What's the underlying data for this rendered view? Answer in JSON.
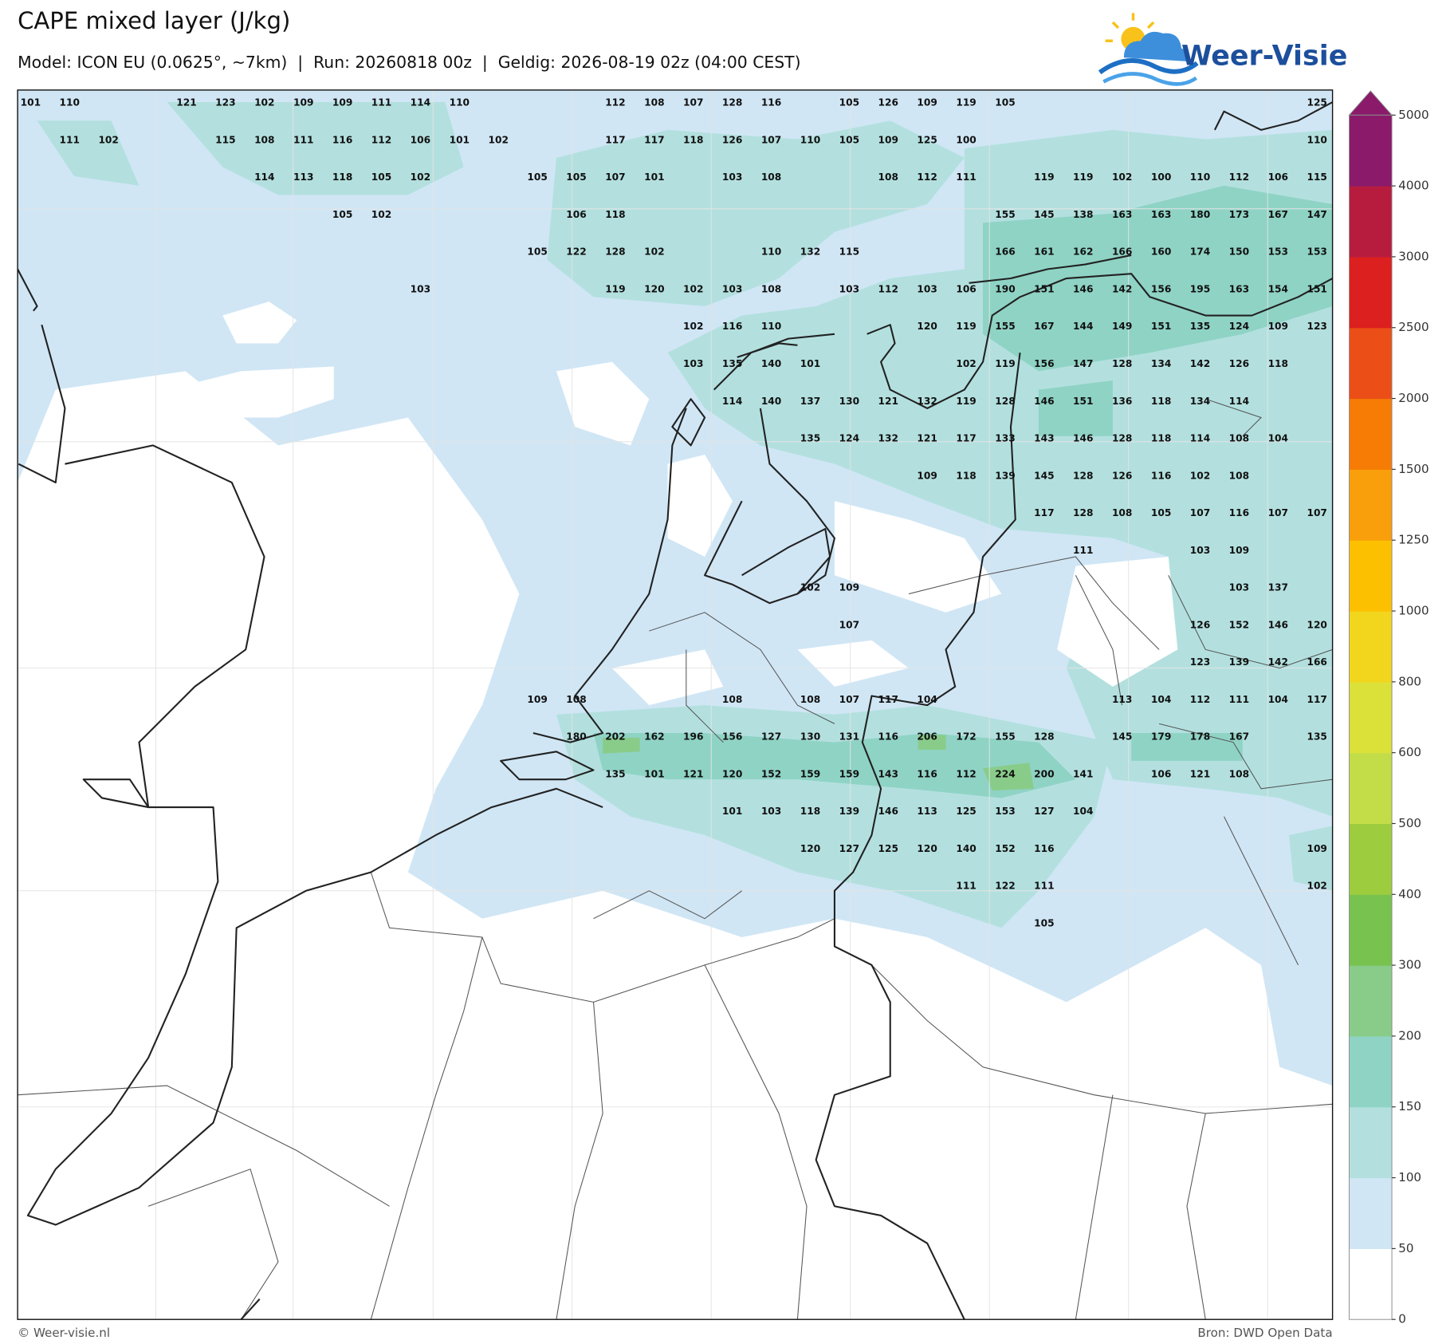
{
  "header": {
    "title": "CAPE mixed layer (J/kg)",
    "subtitle": "Model: ICON EU (0.0625°, ~7km)  |  Run: 20260818 00z  |  Geldig: 2026-08-19 02z (04:00 CEST)",
    "logo": "Weer-Visie"
  },
  "map": {
    "value_grid": [
      [
        101,
        110,
        null,
        null,
        121,
        123,
        102,
        109,
        109,
        111,
        114,
        110,
        null,
        null,
        null,
        112,
        108,
        107,
        128,
        116,
        null,
        105,
        126,
        109,
        119,
        105,
        null,
        null,
        null,
        null,
        null,
        null,
        null,
        125
      ],
      [
        null,
        111,
        102,
        null,
        null,
        115,
        108,
        111,
        116,
        112,
        106,
        101,
        102,
        null,
        null,
        117,
        117,
        118,
        126,
        107,
        110,
        105,
        109,
        125,
        100,
        null,
        null,
        null,
        null,
        null,
        null,
        null,
        null,
        110
      ],
      [
        null,
        null,
        null,
        null,
        null,
        null,
        114,
        113,
        118,
        105,
        102,
        null,
        null,
        105,
        105,
        107,
        101,
        null,
        103,
        108,
        null,
        null,
        108,
        112,
        111,
        null,
        119,
        119,
        102,
        100,
        110,
        112,
        106,
        115
      ],
      [
        null,
        null,
        null,
        null,
        null,
        null,
        null,
        null,
        105,
        102,
        null,
        null,
        null,
        null,
        106,
        118,
        null,
        null,
        null,
        null,
        null,
        null,
        null,
        null,
        null,
        155,
        145,
        138,
        163,
        163,
        180,
        173,
        167,
        147
      ],
      [
        null,
        null,
        null,
        null,
        null,
        null,
        null,
        null,
        null,
        null,
        null,
        null,
        null,
        105,
        122,
        128,
        102,
        null,
        null,
        110,
        132,
        115,
        null,
        null,
        null,
        166,
        161,
        162,
        166,
        160,
        174,
        150,
        153,
        153
      ],
      [
        null,
        null,
        null,
        null,
        null,
        null,
        null,
        null,
        null,
        null,
        103,
        null,
        null,
        null,
        null,
        119,
        120,
        102,
        103,
        108,
        null,
        103,
        112,
        103,
        106,
        190,
        151,
        146,
        142,
        156,
        195,
        163,
        154,
        151
      ],
      [
        null,
        null,
        null,
        null,
        null,
        null,
        null,
        null,
        null,
        null,
        null,
        null,
        null,
        null,
        null,
        null,
        null,
        102,
        116,
        110,
        null,
        null,
        null,
        120,
        119,
        155,
        167,
        144,
        149,
        151,
        135,
        124,
        109,
        123
      ],
      [
        null,
        null,
        null,
        null,
        null,
        null,
        null,
        null,
        null,
        null,
        null,
        null,
        null,
        null,
        null,
        null,
        null,
        103,
        135,
        140,
        101,
        null,
        null,
        null,
        102,
        119,
        156,
        147,
        128,
        134,
        142,
        126,
        118,
        null
      ],
      [
        null,
        null,
        null,
        null,
        null,
        null,
        null,
        null,
        null,
        null,
        null,
        null,
        null,
        null,
        null,
        null,
        null,
        null,
        114,
        140,
        137,
        130,
        121,
        132,
        119,
        128,
        146,
        151,
        136,
        118,
        134,
        114,
        null,
        null
      ],
      [
        null,
        null,
        null,
        null,
        null,
        null,
        null,
        null,
        null,
        null,
        null,
        null,
        null,
        null,
        null,
        null,
        null,
        null,
        null,
        null,
        135,
        124,
        132,
        121,
        117,
        133,
        143,
        146,
        128,
        118,
        114,
        108,
        104,
        null
      ],
      [
        null,
        null,
        null,
        null,
        null,
        null,
        null,
        null,
        null,
        null,
        null,
        null,
        null,
        null,
        null,
        null,
        null,
        null,
        null,
        null,
        null,
        null,
        null,
        109,
        118,
        139,
        145,
        128,
        126,
        116,
        102,
        108,
        null,
        null
      ],
      [
        null,
        null,
        null,
        null,
        null,
        null,
        null,
        null,
        null,
        null,
        null,
        null,
        null,
        null,
        null,
        null,
        null,
        null,
        null,
        null,
        null,
        null,
        null,
        null,
        null,
        null,
        117,
        128,
        108,
        105,
        107,
        116,
        107,
        107
      ],
      [
        null,
        null,
        null,
        null,
        null,
        null,
        null,
        null,
        null,
        null,
        null,
        null,
        null,
        null,
        null,
        null,
        null,
        null,
        null,
        null,
        null,
        null,
        null,
        null,
        null,
        null,
        null,
        111,
        null,
        null,
        103,
        109,
        null,
        null
      ],
      [
        null,
        null,
        null,
        null,
        null,
        null,
        null,
        null,
        null,
        null,
        null,
        null,
        null,
        null,
        null,
        null,
        null,
        null,
        null,
        null,
        102,
        109,
        null,
        null,
        null,
        null,
        null,
        null,
        null,
        null,
        null,
        103,
        137,
        null
      ],
      [
        null,
        null,
        null,
        null,
        null,
        null,
        null,
        null,
        null,
        null,
        null,
        null,
        null,
        null,
        null,
        null,
        null,
        null,
        null,
        null,
        null,
        107,
        null,
        null,
        null,
        null,
        null,
        null,
        null,
        null,
        126,
        152,
        146,
        120
      ],
      [
        null,
        null,
        null,
        null,
        null,
        null,
        null,
        null,
        null,
        null,
        null,
        null,
        null,
        null,
        null,
        null,
        null,
        null,
        null,
        null,
        null,
        null,
        null,
        null,
        null,
        null,
        null,
        null,
        null,
        null,
        123,
        139,
        142,
        166
      ],
      [
        null,
        null,
        null,
        null,
        null,
        null,
        null,
        null,
        null,
        null,
        null,
        null,
        null,
        109,
        108,
        null,
        null,
        null,
        108,
        null,
        108,
        107,
        117,
        104,
        null,
        null,
        null,
        null,
        113,
        104,
        112,
        111,
        104,
        117
      ],
      [
        null,
        null,
        null,
        null,
        null,
        null,
        null,
        null,
        null,
        null,
        null,
        null,
        null,
        null,
        180,
        202,
        162,
        196,
        156,
        127,
        130,
        131,
        116,
        206,
        172,
        155,
        128,
        null,
        145,
        179,
        178,
        167,
        null,
        135
      ],
      [
        null,
        null,
        null,
        null,
        null,
        null,
        null,
        null,
        null,
        null,
        null,
        null,
        null,
        null,
        null,
        135,
        101,
        121,
        120,
        152,
        159,
        159,
        143,
        116,
        112,
        224,
        200,
        141,
        null,
        106,
        121,
        108,
        null,
        null
      ],
      [
        null,
        null,
        null,
        null,
        null,
        null,
        null,
        null,
        null,
        null,
        null,
        null,
        null,
        null,
        null,
        null,
        null,
        null,
        101,
        103,
        118,
        139,
        146,
        113,
        125,
        153,
        127,
        104,
        null,
        null,
        null,
        null,
        null,
        null
      ],
      [
        null,
        null,
        null,
        null,
        null,
        null,
        null,
        null,
        null,
        null,
        null,
        null,
        null,
        null,
        null,
        null,
        null,
        null,
        null,
        null,
        120,
        127,
        125,
        120,
        140,
        152,
        116,
        null,
        null,
        null,
        null,
        null,
        null,
        109
      ],
      [
        null,
        null,
        null,
        null,
        null,
        null,
        null,
        null,
        null,
        null,
        null,
        null,
        null,
        null,
        null,
        null,
        null,
        null,
        null,
        null,
        null,
        null,
        null,
        null,
        111,
        122,
        111,
        null,
        null,
        null,
        null,
        null,
        null,
        102
      ],
      [
        null,
        null,
        null,
        null,
        null,
        null,
        null,
        null,
        null,
        null,
        null,
        null,
        null,
        null,
        null,
        null,
        null,
        null,
        null,
        null,
        null,
        null,
        null,
        null,
        null,
        null,
        105,
        null,
        null,
        null,
        null,
        null,
        null,
        null
      ]
    ]
  },
  "colorbar": {
    "levels": [
      0,
      50,
      100,
      150,
      200,
      300,
      400,
      500,
      600,
      800,
      1000,
      1250,
      1500,
      2000,
      2500,
      3000,
      4000,
      5000
    ],
    "colors": [
      "#ffffff",
      "#d0e6f5",
      "#b3e0df",
      "#8fd3c5",
      "#89cc8a",
      "#78c24f",
      "#9dcc3e",
      "#c3dd48",
      "#dce13a",
      "#f2d51d",
      "#fcc000",
      "#fa9f0c",
      "#f67c06",
      "#eb4e16",
      "#dc1f1f",
      "#b71c3e",
      "#8b1a6b"
    ],
    "extend_max": true
  },
  "footer": {
    "copyright": "© Weer-visie.nl",
    "source": "Bron: DWD Open Data"
  }
}
